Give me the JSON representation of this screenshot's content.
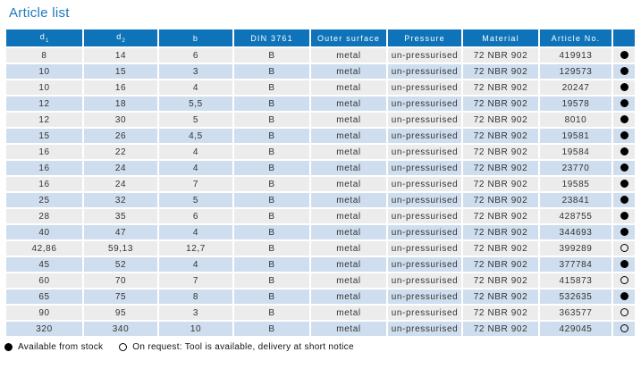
{
  "page_title": "Article list",
  "colors": {
    "header_bg": "#0e73b8",
    "title_blue": "#1d79b8",
    "row_gray": "#ececec",
    "row_blue": "#cfdeee",
    "body_text": "#333333"
  },
  "table": {
    "columns": [
      {
        "label": "d",
        "sub": "1"
      },
      {
        "label": "d",
        "sub": "2"
      },
      {
        "label": "b",
        "sub": ""
      },
      {
        "label": "DIN 3761",
        "sub": ""
      },
      {
        "label": "Outer surface",
        "sub": ""
      },
      {
        "label": "Pressure",
        "sub": ""
      },
      {
        "label": "Material",
        "sub": ""
      },
      {
        "label": "Article No.",
        "sub": ""
      },
      {
        "label": "",
        "sub": ""
      }
    ],
    "rows": [
      {
        "d1": "8",
        "d2": "14",
        "b": "6",
        "din": "B",
        "outer_surface": "metal",
        "pressure": "un-pressurised",
        "material": "72 NBR 902",
        "article_no": "419913",
        "stock": "available"
      },
      {
        "d1": "10",
        "d2": "15",
        "b": "3",
        "din": "B",
        "outer_surface": "metal",
        "pressure": "un-pressurised",
        "material": "72 NBR 902",
        "article_no": "129573",
        "stock": "available"
      },
      {
        "d1": "10",
        "d2": "16",
        "b": "4",
        "din": "B",
        "outer_surface": "metal",
        "pressure": "un-pressurised",
        "material": "72 NBR 902",
        "article_no": "20247",
        "stock": "available"
      },
      {
        "d1": "12",
        "d2": "18",
        "b": "5,5",
        "din": "B",
        "outer_surface": "metal",
        "pressure": "un-pressurised",
        "material": "72 NBR 902",
        "article_no": "19578",
        "stock": "available"
      },
      {
        "d1": "12",
        "d2": "30",
        "b": "5",
        "din": "B",
        "outer_surface": "metal",
        "pressure": "un-pressurised",
        "material": "72 NBR 902",
        "article_no": "8010",
        "stock": "available"
      },
      {
        "d1": "15",
        "d2": "26",
        "b": "4,5",
        "din": "B",
        "outer_surface": "metal",
        "pressure": "un-pressurised",
        "material": "72 NBR 902",
        "article_no": "19581",
        "stock": "available"
      },
      {
        "d1": "16",
        "d2": "22",
        "b": "4",
        "din": "B",
        "outer_surface": "metal",
        "pressure": "un-pressurised",
        "material": "72 NBR 902",
        "article_no": "19584",
        "stock": "available"
      },
      {
        "d1": "16",
        "d2": "24",
        "b": "4",
        "din": "B",
        "outer_surface": "metal",
        "pressure": "un-pressurised",
        "material": "72 NBR 902",
        "article_no": "23770",
        "stock": "available"
      },
      {
        "d1": "16",
        "d2": "24",
        "b": "7",
        "din": "B",
        "outer_surface": "metal",
        "pressure": "un-pressurised",
        "material": "72 NBR 902",
        "article_no": "19585",
        "stock": "available"
      },
      {
        "d1": "25",
        "d2": "32",
        "b": "5",
        "din": "B",
        "outer_surface": "metal",
        "pressure": "un-pressurised",
        "material": "72 NBR 902",
        "article_no": "23841",
        "stock": "available"
      },
      {
        "d1": "28",
        "d2": "35",
        "b": "6",
        "din": "B",
        "outer_surface": "metal",
        "pressure": "un-pressurised",
        "material": "72 NBR 902",
        "article_no": "428755",
        "stock": "available"
      },
      {
        "d1": "40",
        "d2": "47",
        "b": "4",
        "din": "B",
        "outer_surface": "metal",
        "pressure": "un-pressurised",
        "material": "72 NBR 902",
        "article_no": "344693",
        "stock": "available"
      },
      {
        "d1": "42,86",
        "d2": "59,13",
        "b": "12,7",
        "din": "B",
        "outer_surface": "metal",
        "pressure": "un-pressurised",
        "material": "72 NBR 902",
        "article_no": "399289",
        "stock": "on_request"
      },
      {
        "d1": "45",
        "d2": "52",
        "b": "4",
        "din": "B",
        "outer_surface": "metal",
        "pressure": "un-pressurised",
        "material": "72 NBR 902",
        "article_no": "377784",
        "stock": "available"
      },
      {
        "d1": "60",
        "d2": "70",
        "b": "7",
        "din": "B",
        "outer_surface": "metal",
        "pressure": "un-pressurised",
        "material": "72 NBR 902",
        "article_no": "415873",
        "stock": "on_request"
      },
      {
        "d1": "65",
        "d2": "75",
        "b": "8",
        "din": "B",
        "outer_surface": "metal",
        "pressure": "un-pressurised",
        "material": "72 NBR 902",
        "article_no": "532635",
        "stock": "available"
      },
      {
        "d1": "90",
        "d2": "95",
        "b": "3",
        "din": "B",
        "outer_surface": "metal",
        "pressure": "un-pressurised",
        "material": "72 NBR 902",
        "article_no": "363577",
        "stock": "on_request"
      },
      {
        "d1": "320",
        "d2": "340",
        "b": "10",
        "din": "B",
        "outer_surface": "metal",
        "pressure": "un-pressurised",
        "material": "72 NBR 902",
        "article_no": "429045",
        "stock": "on_request"
      }
    ]
  },
  "legend": {
    "available_label": "Available from stock",
    "on_request_label": "On request: Tool is available, delivery at short notice"
  }
}
